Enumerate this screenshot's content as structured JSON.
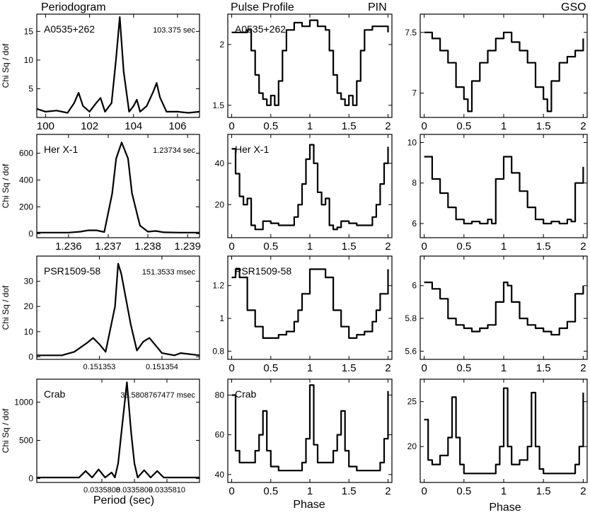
{
  "figure": {
    "headers": {
      "periodogram": "Periodogram",
      "pulse_profile": "Pulse Profile",
      "pin": "PIN",
      "gso": "GSO"
    },
    "xlabels": {
      "period": "Period (sec)",
      "phase_mid": "Phase",
      "phase_right": "Phase"
    },
    "ylabel": "Chi Sq / dof"
  },
  "chart_data": [
    {
      "type": "line",
      "row": 0,
      "col": 0,
      "panel": "periodogram",
      "source": "A0535+262",
      "annotation": "103.375 sec",
      "xlim": [
        99.6,
        107.0
      ],
      "ylim": [
        0,
        18
      ],
      "xticks": [
        100,
        102,
        104,
        106
      ],
      "xtick_labels": [
        "100",
        "102",
        "104",
        "106"
      ],
      "yticks": [
        5,
        10,
        15
      ],
      "ytick_labels": [
        "5",
        "10",
        "15"
      ],
      "x": [
        99.6,
        100.0,
        100.5,
        101.0,
        101.3,
        101.5,
        101.7,
        102.0,
        102.3,
        102.5,
        102.7,
        103.0,
        103.2,
        103.375,
        103.55,
        103.8,
        104.0,
        104.15,
        104.3,
        104.6,
        104.9,
        105.05,
        105.2,
        105.5,
        106.0,
        106.5,
        107.0
      ],
      "y": [
        1.5,
        1.0,
        1.2,
        0.8,
        2.5,
        4.3,
        2.0,
        1.0,
        2.5,
        3.4,
        1.0,
        2.5,
        10.0,
        17.5,
        8.0,
        1.0,
        2.0,
        3.1,
        1.0,
        2.0,
        4.5,
        6.0,
        3.5,
        1.0,
        1.0,
        0.8,
        1.0
      ]
    },
    {
      "type": "line",
      "row": 0,
      "col": 1,
      "panel": "pulse profile PIN",
      "source": "A0535+262",
      "xlim": [
        -0.05,
        2.05
      ],
      "ylim": [
        1.4,
        2.25
      ],
      "xticks": [
        0,
        0.5,
        1,
        1.5,
        2
      ],
      "xtick_labels": [
        "0",
        "0.5",
        "1",
        "1.5",
        "2"
      ],
      "yticks": [
        1.5,
        2
      ],
      "ytick_labels": [
        "1.5",
        "2"
      ],
      "x": [
        0,
        0.1,
        0.2,
        0.25,
        0.3,
        0.35,
        0.4,
        0.45,
        0.5,
        0.55,
        0.6,
        0.65,
        0.7,
        0.8,
        0.9,
        1.0,
        1.1,
        1.2,
        1.25,
        1.3,
        1.35,
        1.4,
        1.45,
        1.5,
        1.55,
        1.6,
        1.65,
        1.7,
        1.8,
        1.9,
        2.0
      ],
      "y": [
        2.1,
        2.1,
        2.12,
        1.95,
        1.75,
        1.6,
        1.55,
        1.5,
        1.58,
        1.5,
        1.7,
        1.95,
        2.12,
        2.18,
        2.15,
        2.2,
        2.15,
        2.12,
        1.95,
        1.75,
        1.6,
        1.55,
        1.5,
        1.58,
        1.5,
        1.7,
        1.95,
        2.12,
        2.15,
        2.15,
        2.1
      ]
    },
    {
      "type": "line",
      "row": 0,
      "col": 2,
      "panel": "pulse profile GSO",
      "xlim": [
        -0.05,
        2.05
      ],
      "ylim": [
        6.8,
        7.65
      ],
      "xticks": [
        0,
        0.5,
        1,
        1.5,
        2
      ],
      "xtick_labels": [
        "0",
        "0.5",
        "1",
        "1.5",
        "2"
      ],
      "yticks": [
        7,
        7.5
      ],
      "ytick_labels": [
        "7",
        "7.5"
      ],
      "x": [
        0,
        0.1,
        0.2,
        0.3,
        0.4,
        0.5,
        0.55,
        0.6,
        0.7,
        0.8,
        0.9,
        1.0,
        1.1,
        1.2,
        1.3,
        1.4,
        1.5,
        1.55,
        1.6,
        1.7,
        1.8,
        1.9,
        2.0
      ],
      "y": [
        7.5,
        7.45,
        7.35,
        7.25,
        7.05,
        6.95,
        6.85,
        7.1,
        7.25,
        7.35,
        7.45,
        7.5,
        7.42,
        7.35,
        7.25,
        7.05,
        6.95,
        6.85,
        7.1,
        7.25,
        7.3,
        7.35,
        7.45
      ]
    },
    {
      "type": "line",
      "row": 1,
      "col": 0,
      "panel": "periodogram",
      "source": "Her X-1",
      "annotation": "1.23734 sec",
      "xlim": [
        1.2352,
        1.2393
      ],
      "ylim": [
        -30,
        740
      ],
      "xticks": [
        1.236,
        1.237,
        1.238,
        1.239
      ],
      "xtick_labels": [
        "1.236",
        "1.237",
        "1.238",
        "1.239"
      ],
      "yticks": [
        0,
        200,
        400,
        600
      ],
      "ytick_labels": [
        "0",
        "200",
        "400",
        "600"
      ],
      "x": [
        1.2352,
        1.2356,
        1.236,
        1.2363,
        1.2365,
        1.2367,
        1.2369,
        1.2371,
        1.2372,
        1.23734,
        1.2375,
        1.2376,
        1.2378,
        1.238,
        1.2382,
        1.2384,
        1.2388,
        1.2393
      ],
      "y": [
        8,
        8,
        8,
        15,
        25,
        25,
        12,
        300,
        560,
        680,
        560,
        300,
        60,
        15,
        20,
        10,
        8,
        8
      ]
    },
    {
      "type": "line",
      "row": 1,
      "col": 1,
      "panel": "pulse profile PIN",
      "source": "Her X-1",
      "xlim": [
        -0.05,
        2.05
      ],
      "ylim": [
        4,
        54
      ],
      "xticks": [
        0,
        0.5,
        1,
        1.5,
        2
      ],
      "xtick_labels": [
        "0",
        "0.5",
        "1",
        "1.5",
        "2"
      ],
      "yticks": [
        20,
        40
      ],
      "ytick_labels": [
        "20",
        "40"
      ],
      "x": [
        0,
        0.05,
        0.1,
        0.15,
        0.2,
        0.25,
        0.3,
        0.35,
        0.4,
        0.5,
        0.6,
        0.7,
        0.8,
        0.85,
        0.9,
        0.95,
        1.0,
        1.05,
        1.1,
        1.15,
        1.2,
        1.25,
        1.3,
        1.35,
        1.4,
        1.5,
        1.6,
        1.7,
        1.8,
        1.85,
        1.9,
        1.95,
        2.0
      ],
      "y": [
        47,
        35,
        24,
        20,
        23,
        10,
        8,
        8,
        12,
        11,
        10,
        10,
        14,
        20,
        30,
        42,
        49,
        40,
        26,
        20,
        23,
        10,
        8,
        9,
        12,
        11,
        10,
        10,
        14,
        20,
        30,
        40,
        48
      ]
    },
    {
      "type": "line",
      "row": 1,
      "col": 2,
      "panel": "pulse profile GSO",
      "xlim": [
        -0.05,
        2.05
      ],
      "ylim": [
        5.3,
        10.4
      ],
      "xticks": [
        0,
        0.5,
        1,
        1.5,
        2
      ],
      "xtick_labels": [
        "0",
        "0.5",
        "1",
        "1.5",
        "2"
      ],
      "yticks": [
        6,
        8,
        10
      ],
      "ytick_labels": [
        "6",
        "8",
        "10"
      ],
      "x": [
        0,
        0.1,
        0.2,
        0.3,
        0.4,
        0.5,
        0.6,
        0.7,
        0.8,
        0.85,
        0.9,
        1.0,
        1.1,
        1.2,
        1.3,
        1.4,
        1.5,
        1.6,
        1.7,
        1.8,
        1.85,
        1.9,
        2.0
      ],
      "y": [
        9.3,
        8.2,
        7.5,
        6.8,
        6.2,
        6.0,
        6.1,
        6.0,
        6.2,
        6.0,
        8.2,
        9.3,
        8.5,
        7.6,
        6.8,
        6.2,
        6.0,
        6.1,
        6.0,
        6.2,
        6.1,
        8.0,
        8.8
      ]
    },
    {
      "type": "line",
      "row": 2,
      "col": 0,
      "panel": "periodogram",
      "source": "PSR1509-58",
      "annotation": "151.3533 msec",
      "xlim": [
        0.151352,
        0.1513546
      ],
      "ylim": [
        -1,
        40
      ],
      "xticks": [
        0.151353,
        0.151354
      ],
      "xtick_labels": [
        "0.151353",
        "0.151354"
      ],
      "yticks": [
        0,
        10,
        20,
        30
      ],
      "ytick_labels": [
        "0",
        "10",
        "20",
        "30"
      ],
      "x": [
        0.151352,
        0.1513524,
        0.1513526,
        0.1513528,
        0.1513529,
        0.151353,
        0.1513531,
        0.15135325,
        0.1513533,
        0.15135335,
        0.1513535,
        0.1513536,
        0.1513537,
        0.1513538,
        0.1513539,
        0.151354,
        0.1513542,
        0.1513543,
        0.1513546
      ],
      "y": [
        0.6,
        0.6,
        2.0,
        5.5,
        7.5,
        5.0,
        2.0,
        20.0,
        37.0,
        33.0,
        13.0,
        2.5,
        6.0,
        7.5,
        4.5,
        1.5,
        0.6,
        1.5,
        0.6
      ]
    },
    {
      "type": "line",
      "row": 2,
      "col": 1,
      "panel": "pulse profile PIN",
      "source": "PSR1509-58",
      "xlim": [
        -0.05,
        2.05
      ],
      "ylim": [
        0.75,
        1.38
      ],
      "xticks": [
        0,
        0.5,
        1,
        1.5,
        2
      ],
      "xtick_labels": [
        "0",
        "0.5",
        "1",
        "1.5",
        "2"
      ],
      "yticks": [
        0.8,
        1,
        1.2
      ],
      "ytick_labels": [
        "0.8",
        "1",
        "1.2"
      ],
      "x": [
        0,
        0.05,
        0.1,
        0.2,
        0.3,
        0.4,
        0.5,
        0.6,
        0.7,
        0.8,
        0.85,
        0.9,
        1.0,
        1.1,
        1.2,
        1.3,
        1.4,
        1.5,
        1.6,
        1.7,
        1.8,
        1.85,
        1.9,
        2.0
      ],
      "y": [
        1.25,
        1.3,
        1.25,
        1.05,
        0.95,
        0.88,
        0.88,
        0.9,
        0.92,
        0.98,
        1.05,
        1.15,
        1.3,
        1.3,
        1.25,
        1.05,
        0.95,
        0.88,
        0.9,
        0.92,
        0.98,
        1.05,
        1.15,
        1.3
      ]
    },
    {
      "type": "line",
      "row": 2,
      "col": 2,
      "panel": "pulse profile GSO",
      "xlim": [
        -0.05,
        2.05
      ],
      "ylim": [
        5.55,
        6.18
      ],
      "xticks": [
        0,
        0.5,
        1,
        1.5,
        2
      ],
      "xtick_labels": [
        "0",
        "0.5",
        "1",
        "1.5",
        "2"
      ],
      "yticks": [
        5.6,
        5.8,
        6
      ],
      "ytick_labels": [
        "5.6",
        "5.8",
        "6"
      ],
      "x": [
        0,
        0.1,
        0.2,
        0.3,
        0.4,
        0.5,
        0.6,
        0.7,
        0.8,
        0.9,
        1.0,
        1.05,
        1.1,
        1.2,
        1.3,
        1.4,
        1.5,
        1.6,
        1.7,
        1.8,
        1.9,
        2.0
      ],
      "y": [
        6.02,
        5.98,
        5.92,
        5.8,
        5.76,
        5.74,
        5.72,
        5.74,
        5.76,
        5.9,
        6.02,
        6.0,
        5.9,
        5.8,
        5.76,
        5.74,
        5.72,
        5.7,
        5.74,
        5.78,
        5.95,
        6.0
      ]
    },
    {
      "type": "line",
      "row": 3,
      "col": 0,
      "panel": "periodogram",
      "source": "Crab",
      "annotation": "33.5808767477 msec",
      "xlim": [
        0.0335806,
        0.0335811
      ],
      "ylim": [
        -50,
        1300
      ],
      "xticks": [
        0.0335808,
        0.0335809,
        0.033581
      ],
      "xtick_labels": [
        "0.0335808",
        "0.0335809",
        "0.0335810"
      ],
      "yticks": [
        0,
        500,
        1000
      ],
      "ytick_labels": [
        "0",
        "500",
        "1000"
      ],
      "x": [
        0.0335806,
        0.03358073,
        0.03358075,
        0.03358077,
        0.03358079,
        0.03358081,
        0.03358083,
        0.03358084,
        0.03358085,
        0.03358086,
        0.033580877,
        0.03358089,
        0.0335809,
        0.03358091,
        0.03358093,
        0.03358095,
        0.03358097,
        0.03358099,
        0.03358101,
        0.0335811
      ],
      "y": [
        15,
        15,
        100,
        15,
        120,
        15,
        80,
        15,
        200,
        600,
        1260,
        600,
        200,
        15,
        110,
        15,
        100,
        15,
        15,
        15
      ]
    },
    {
      "type": "line",
      "row": 3,
      "col": 1,
      "panel": "pulse profile PIN",
      "source": "Crab",
      "xlim": [
        -0.05,
        2.05
      ],
      "ylim": [
        36,
        88
      ],
      "xticks": [
        0,
        0.5,
        1,
        1.5,
        2
      ],
      "xtick_labels": [
        "0",
        "0.5",
        "1",
        "1.5",
        "2"
      ],
      "yticks": [
        40,
        60,
        80
      ],
      "ytick_labels": [
        "40",
        "60",
        "80"
      ],
      "x": [
        0,
        0.05,
        0.1,
        0.2,
        0.3,
        0.35,
        0.4,
        0.45,
        0.5,
        0.6,
        0.7,
        0.8,
        0.9,
        0.95,
        1.0,
        1.05,
        1.1,
        1.2,
        1.3,
        1.35,
        1.4,
        1.45,
        1.5,
        1.6,
        1.7,
        1.8,
        1.9,
        1.95,
        2.0
      ],
      "y": [
        80,
        52,
        46,
        46,
        52,
        60,
        72,
        52,
        44,
        42,
        42,
        42,
        46,
        58,
        85,
        55,
        46,
        46,
        52,
        60,
        72,
        52,
        44,
        42,
        42,
        42,
        46,
        58,
        82
      ]
    },
    {
      "type": "line",
      "row": 3,
      "col": 2,
      "panel": "pulse profile GSO",
      "xlim": [
        -0.05,
        2.05
      ],
      "ylim": [
        16,
        27.5
      ],
      "xticks": [
        0,
        0.5,
        1,
        1.5,
        2
      ],
      "xtick_labels": [
        "0",
        "0.5",
        "1",
        "1.5",
        "2"
      ],
      "yticks": [
        20,
        25
      ],
      "ytick_labels": [
        "20",
        "25"
      ],
      "x": [
        0,
        0.05,
        0.1,
        0.2,
        0.3,
        0.35,
        0.4,
        0.45,
        0.5,
        0.6,
        0.7,
        0.8,
        0.9,
        0.95,
        1.0,
        1.05,
        1.1,
        1.2,
        1.3,
        1.35,
        1.4,
        1.45,
        1.5,
        1.6,
        1.7,
        1.8,
        1.9,
        1.95,
        2.0
      ],
      "y": [
        23,
        18.5,
        18,
        19,
        21,
        25.5,
        21,
        18,
        17,
        17,
        17,
        17,
        18,
        20,
        26.5,
        20,
        18,
        18.5,
        20,
        26,
        20,
        17.5,
        17,
        17,
        17,
        17,
        18,
        20,
        26
      ]
    }
  ]
}
